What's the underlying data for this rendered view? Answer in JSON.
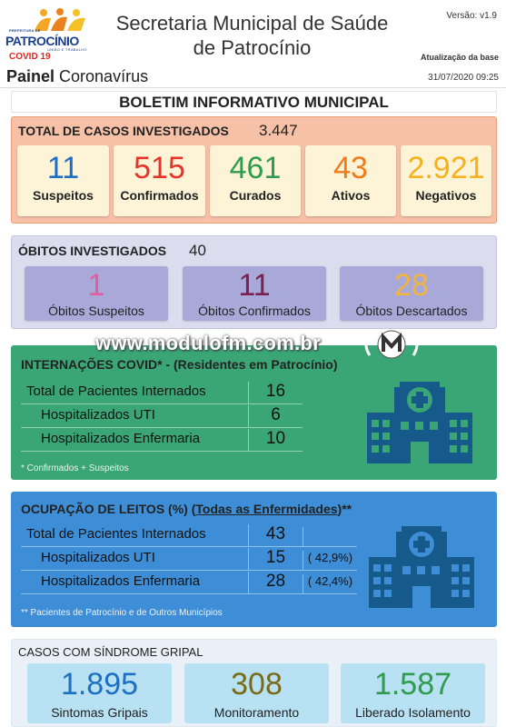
{
  "header": {
    "logo": {
      "prefeitura": "PREFEITURA DE",
      "name": "PATROCÍNIO",
      "tagline": "UNIÃO E TRABALHO",
      "covid": "COVID 19"
    },
    "title_line1": "Secretaria Municipal de Saúde",
    "title_line2": "de Patrocínio",
    "version": "Versão: v1.9",
    "update_label": "Atualização da base",
    "update_datetime": "31/07/2020 09:25",
    "painel_bold": "Painel",
    "painel_rest": " Coronavírus"
  },
  "bulletin_title": "BOLETIM INFORMATIVO MUNICIPAL",
  "casos": {
    "title": "TOTAL DE CASOS INVESTIGADOS",
    "total": "3.447",
    "cards": [
      {
        "value": "11",
        "label": "Suspeitos",
        "color": "#1c6fc2"
      },
      {
        "value": "515",
        "label": "Confirmados",
        "color": "#e5342a"
      },
      {
        "value": "461",
        "label": "Curados",
        "color": "#2f9b4d"
      },
      {
        "value": "43",
        "label": "Ativos",
        "color": "#f07b1c"
      },
      {
        "value": "2.921",
        "label": "Negativos",
        "color": "#f5b21d"
      }
    ]
  },
  "obitos": {
    "title": "ÓBITOS INVESTIGADOS",
    "total": "40",
    "cards": [
      {
        "value": "1",
        "label": "Óbitos Suspeitos",
        "color": "#e35d9e"
      },
      {
        "value": "11",
        "label": "Óbitos Confirmados",
        "color": "#7b1f4f"
      },
      {
        "value": "28",
        "label": "Óbitos Descartados",
        "color": "#f2b43a"
      }
    ]
  },
  "watermark": {
    "text": "www.modulofm.com.br"
  },
  "internacoes": {
    "title_bold": "INTERNAÇÕES COVID* - (Residentes em Patrocínio)",
    "rows": [
      {
        "label": "Total de Pacientes Internados",
        "value": "16"
      },
      {
        "label": "Hospitalizados UTI",
        "value": "6"
      },
      {
        "label": "Hospitalizados Enfermaria",
        "value": "10"
      }
    ],
    "note": "* Confirmados + Suspeitos"
  },
  "leitos": {
    "title_a": "OCUPAÇÃO DE LEITOS (%) (",
    "title_link": "Todas as Enfermidades",
    "title_b": ")**",
    "rows": [
      {
        "label": "Total de Pacientes Internados",
        "value": "43",
        "pct": ""
      },
      {
        "label": "Hospitalizados UTI",
        "value": "15",
        "pct": "( 42,9%)"
      },
      {
        "label": "Hospitalizados Enfermaria",
        "value": "28",
        "pct": "( 42,4%)"
      }
    ],
    "note": "** Pacientes de Patrocínio e de Outros Municípios"
  },
  "sindrome": {
    "title": "CASOS COM SÍNDROME GRIPAL",
    "cards": [
      {
        "value": "1.895",
        "label": "Sintomas Gripais",
        "color": "#1c6fc2"
      },
      {
        "value": "308",
        "label": "Monitoramento",
        "color": "#7a6a17"
      },
      {
        "value": "1.587",
        "label": "Liberado Isolamento",
        "color": "#2f9b4d"
      }
    ]
  }
}
